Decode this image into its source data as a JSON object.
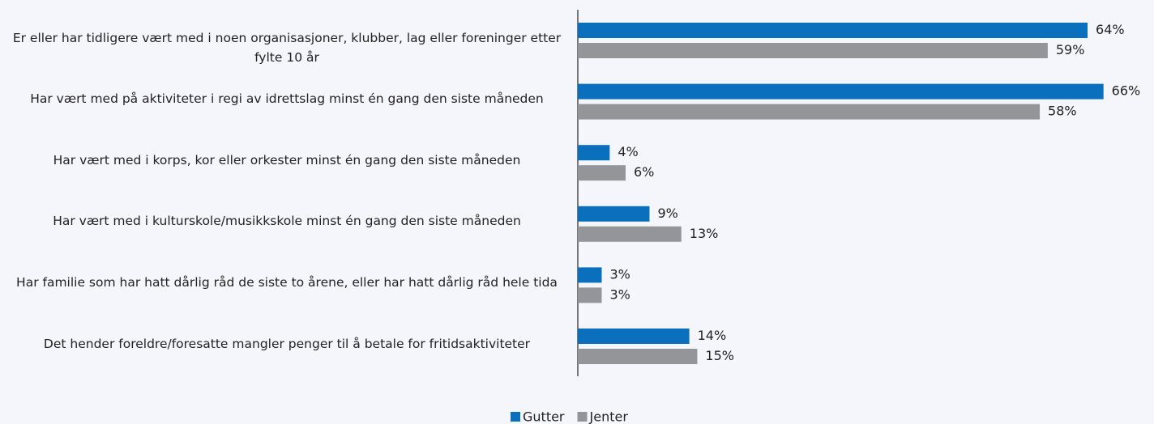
{
  "chart_data": {
    "type": "barh",
    "categories": [
      "Er eller har tidligere vært med i noen organisasjoner, klubber, lag eller foreninger etter fylte 10 år",
      "Har vært med på aktiviteter i regi av idrettslag minst én gang den siste måneden",
      "Har vært med i korps, kor eller orkester minst én gang den siste måneden",
      "Har vært med i kulturskole/musikkskole minst én gang den siste måneden",
      "Har familie som har hatt dårlig råd de siste to årene, eller har hatt dårlig råd hele tida",
      "Det hender foreldre/foresatte mangler penger til å betale for fritidsaktiviteter"
    ],
    "series": [
      {
        "name": "Gutter",
        "color": "#0a70bd",
        "values": [
          64,
          66,
          4,
          9,
          3,
          14
        ],
        "value_labels": [
          "64%",
          "66%",
          "4%",
          "9%",
          "3%",
          "14%"
        ]
      },
      {
        "name": "Jenter",
        "color": "#939598",
        "values": [
          59,
          58,
          6,
          13,
          3,
          15
        ],
        "value_labels": [
          "59%",
          "58%",
          "6%",
          "13%",
          "3%",
          "15%"
        ]
      }
    ],
    "xlim": [
      0,
      70
    ],
    "legend": "bottom"
  }
}
